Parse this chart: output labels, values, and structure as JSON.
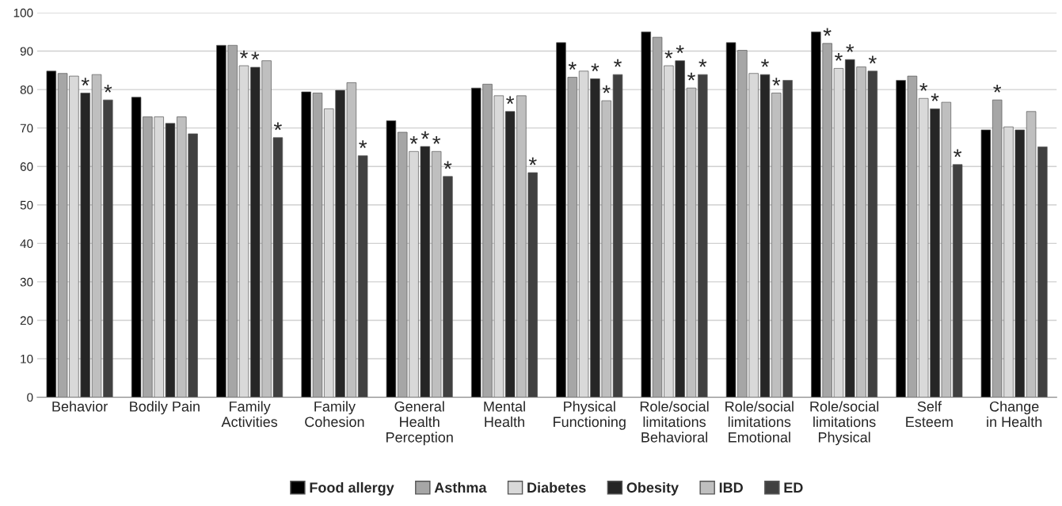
{
  "chart_data": {
    "type": "bar",
    "categories": [
      "Behavior",
      "Bodily Pain",
      "Family\nActivities",
      "Family\nCohesion",
      "General\nHealth\nPerception",
      "Mental\nHealth",
      "Physical\nFunctioning",
      "Role/social\nlimitations\nBehavioral",
      "Role/social\nlimitations\nEmotional",
      "Role/social\nlimitations\nPhysical",
      "Self\nEsteem",
      "Change\nin Health"
    ],
    "series": [
      {
        "name": "Food allergy",
        "color": "#000000",
        "values": [
          84.8,
          78.0,
          91.5,
          79.4,
          71.9,
          80.4,
          92.2,
          95.0,
          92.2,
          95.0,
          82.4,
          69.5
        ],
        "value_labels": [
          null,
          null,
          null,
          null,
          null,
          null,
          null,
          null,
          null,
          null,
          null,
          null
        ]
      },
      {
        "name": "Asthma",
        "color": "#a6a6a6",
        "values": [
          84.2,
          72.9,
          91.5,
          79.1,
          68.9,
          81.4,
          83.2,
          93.6,
          90.2,
          92.0,
          83.5,
          77.3
        ],
        "value_labels": [
          null,
          null,
          null,
          null,
          null,
          null,
          "*",
          null,
          null,
          "*",
          null,
          "*"
        ]
      },
      {
        "name": "Diabetes",
        "color": "#d9d9d9",
        "values": [
          83.5,
          72.9,
          86.2,
          75.0,
          63.9,
          78.4,
          84.8,
          86.2,
          84.2,
          85.5,
          77.7,
          70.3
        ],
        "value_labels": [
          null,
          null,
          "*",
          null,
          "*",
          null,
          null,
          "*",
          null,
          "*",
          "*",
          null
        ]
      },
      {
        "name": "Obesity",
        "color": "#262626",
        "values": [
          79.1,
          71.2,
          85.8,
          79.8,
          65.2,
          74.3,
          82.8,
          87.5,
          83.9,
          87.8,
          75.0,
          69.5
        ],
        "value_labels": [
          "*",
          null,
          "*",
          null,
          "*",
          "*",
          "*",
          "*",
          "*",
          "*",
          "*",
          null
        ]
      },
      {
        "name": "IBD",
        "color": "#bfbfbf",
        "values": [
          83.9,
          72.9,
          87.5,
          81.8,
          63.9,
          78.4,
          77.1,
          80.4,
          79.1,
          85.9,
          76.7,
          74.3
        ],
        "value_labels": [
          null,
          null,
          null,
          null,
          "*",
          null,
          "*",
          "*",
          "*",
          null,
          null,
          null
        ]
      },
      {
        "name": "ED",
        "color": "#404040",
        "values": [
          77.3,
          68.5,
          67.5,
          62.8,
          57.4,
          58.4,
          83.9,
          83.9,
          82.4,
          84.8,
          60.5,
          65.1
        ],
        "value_labels": [
          "*",
          null,
          "*",
          "*",
          "*",
          "*",
          "*",
          "*",
          null,
          "*",
          "*",
          null
        ]
      }
    ],
    "ylim": [
      0,
      100
    ],
    "yticks": [
      0,
      10,
      20,
      30,
      40,
      50,
      60,
      70,
      80,
      90,
      100
    ],
    "grid": "y",
    "legend": "bottom"
  }
}
